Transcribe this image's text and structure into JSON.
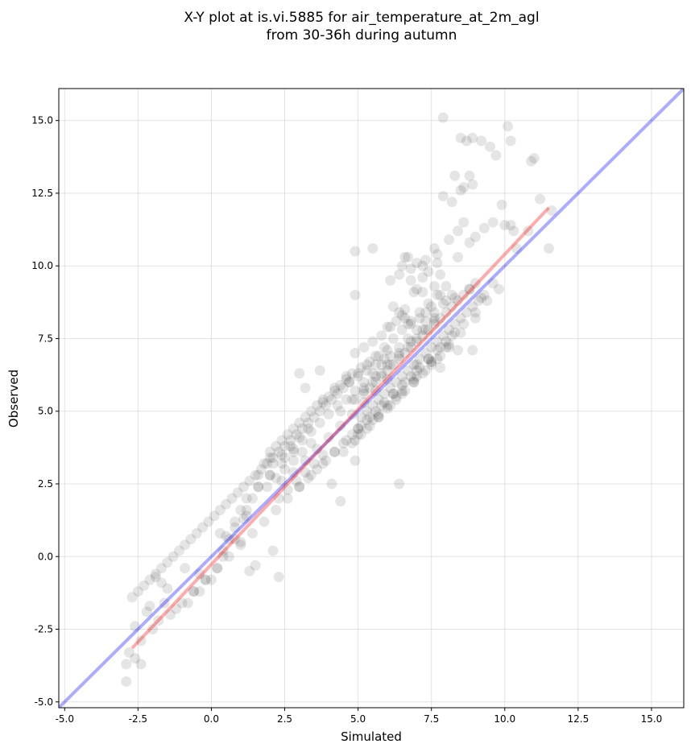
{
  "chart_data": {
    "type": "scatter",
    "title_lines": [
      "X-Y plot at is.vi.5885 for air_temperature_at_2m_agl",
      "from 30-36h during autumn"
    ],
    "xlabel": "Simulated",
    "ylabel": "Observed",
    "xlim": [
      -5.2,
      16.1
    ],
    "ylim": [
      -5.2,
      16.1
    ],
    "xticks": [
      -5.0,
      -2.5,
      0.0,
      2.5,
      5.0,
      7.5,
      10.0,
      12.5,
      15.0
    ],
    "yticks": [
      -5.0,
      -2.5,
      0.0,
      2.5,
      5.0,
      7.5,
      10.0,
      12.5,
      15.0
    ],
    "xtick_labels": [
      "-5.0",
      "-2.5",
      "0.0",
      "2.5",
      "5.0",
      "7.5",
      "10.0",
      "12.5",
      "15.0"
    ],
    "ytick_labels": [
      "-5.0",
      "-2.5",
      "0.0",
      "2.5",
      "5.0",
      "7.5",
      "10.0",
      "12.5",
      "15.0"
    ],
    "grid": true,
    "point_color": "#000000",
    "point_alpha": 0.1,
    "lines": [
      {
        "label": "",
        "color": "#0000ff",
        "alpha": 0.33,
        "x": [
          -5.2,
          16.1
        ],
        "y": [
          -5.2,
          16.1
        ]
      },
      {
        "label": "",
        "color": "#ff0000",
        "alpha": 0.33,
        "x": [
          -2.7,
          11.5
        ],
        "y": [
          -3.15,
          12.0
        ]
      }
    ],
    "points": {
      "x": [
        7.9,
        10.1,
        8.9,
        9.2,
        8.5,
        8.7,
        9.5,
        9.7,
        10.2,
        11.0,
        10.9,
        8.3,
        8.8,
        8.9,
        8.6,
        7.9,
        8.2,
        8.5,
        9.9,
        11.2,
        11.6,
        10.8,
        10.4,
        11.5,
        9.3,
        9.6,
        10.0,
        10.2,
        10.3,
        9.0,
        8.6,
        8.4,
        8.1,
        8.8,
        7.7,
        7.6,
        7.3,
        7.0,
        6.8,
        6.6,
        6.4,
        6.8,
        7.4,
        7.2,
        7.0,
        6.9,
        7.6,
        7.8,
        8.0,
        8.3,
        7.5,
        7.3,
        7.1,
        6.7,
        6.5,
        6.3,
        6.1,
        5.8,
        5.5,
        5.2,
        4.9,
        6.0,
        5.7,
        5.4,
        5.1,
        4.8,
        4.6,
        4.4,
        4.2,
        4.0,
        3.8,
        6.2,
        6.4,
        6.6,
        6.8,
        5.9,
        5.6,
        5.3,
        5.0,
        4.7,
        4.5,
        4.3,
        4.1,
        3.9,
        3.7,
        3.5,
        3.3,
        3.1,
        2.9,
        2.7,
        2.5,
        2.3,
        2.1,
        1.9,
        1.7,
        1.5,
        1.3,
        1.1,
        0.9,
        0.7,
        0.5,
        0.3,
        0.1,
        -0.1,
        -0.3,
        -0.5,
        -0.7,
        -0.9,
        -1.1,
        -1.3,
        -1.5,
        -1.7,
        -1.9,
        -2.1,
        -2.3,
        -2.5,
        -2.7,
        -2.2,
        -1.8,
        -1.6,
        -2.0,
        -2.4,
        -2.6,
        -1.4,
        -1.0,
        -0.6,
        -0.2,
        0.2,
        0.6,
        1.0,
        1.4,
        1.8,
        2.2,
        2.6,
        3.0,
        3.4,
        3.8,
        4.2,
        4.6,
        5.0,
        5.4,
        5.8,
        6.2,
        6.6,
        7.0,
        7.4,
        7.8,
        8.2,
        8.6,
        9.0,
        9.4,
        9.8,
        2.4,
        2.8,
        3.2,
        3.6,
        4.0,
        4.4,
        4.8,
        5.2,
        5.6,
        6.0,
        2.0,
        2.2,
        2.6,
        3.0,
        3.4,
        3.8,
        4.2,
        4.6,
        1.6,
        1.8,
        2.0,
        2.4,
        2.8,
        3.2,
        3.6,
        1.2,
        1.4,
        1.6,
        2.0,
        2.4,
        2.8,
        0.8,
        1.0,
        1.2,
        1.6,
        2.0,
        0.4,
        0.6,
        0.8,
        1.2,
        0.0,
        0.2,
        0.4,
        -0.4,
        -0.2,
        -0.8,
        -0.6,
        -1.2,
        5.1,
        5.3,
        5.5,
        5.7,
        5.9,
        6.1,
        6.3,
        6.5,
        6.7,
        6.9,
        7.1,
        7.3,
        7.5,
        7.7,
        7.9,
        8.1,
        8.3,
        8.5,
        8.7,
        8.9,
        9.1,
        9.3,
        5.2,
        5.4,
        5.6,
        5.8,
        6.0,
        6.2,
        6.4,
        6.6,
        6.8,
        7.0,
        7.2,
        7.4,
        7.6,
        7.8,
        8.0,
        8.2,
        8.4,
        8.6,
        8.8,
        9.0,
        5.0,
        5.3,
        5.6,
        5.9,
        6.2,
        6.5,
        6.8,
        7.1,
        7.4,
        7.7,
        8.0,
        8.3,
        4.9,
        5.2,
        5.5,
        5.8,
        6.1,
        6.4,
        6.7,
        7.0,
        7.3,
        7.6,
        4.8,
        5.1,
        5.4,
        5.7,
        6.0,
        6.3,
        6.6,
        6.9,
        7.2,
        7.5,
        7.8,
        4.7,
        5.0,
        5.3,
        5.6,
        5.9,
        6.2,
        6.5,
        6.8,
        7.1,
        7.4,
        7.7,
        8.0,
        4.5,
        4.9,
        5.3,
        5.7,
        6.1,
        6.5,
        6.9,
        7.3,
        7.7,
        8.1,
        4.4,
        4.8,
        5.2,
        5.6,
        6.0,
        6.4,
        6.8,
        7.2,
        7.6,
        3.0,
        3.3,
        3.6,
        3.9,
        4.2,
        4.5,
        4.8,
        5.1,
        2.5,
        2.8,
        3.1,
        3.4,
        3.7,
        4.0,
        4.3,
        2.3,
        2.6,
        2.9,
        3.2,
        3.5,
        3.8,
        2.1,
        2.4,
        2.7,
        3.0,
        3.3,
        1.9,
        2.2,
        2.5,
        2.8,
        3.1,
        3.4,
        4.6,
        4.9,
        5.2,
        5.5,
        5.8,
        6.1,
        6.4,
        6.7,
        7.0,
        7.3,
        7.6,
        7.9,
        8.2,
        5.0,
        5.5,
        6.0,
        6.5,
        7.0,
        7.5,
        8.0,
        8.5,
        9.0,
        5.7,
        6.3,
        6.9,
        7.5,
        8.1,
        6.0,
        6.6,
        7.2,
        7.8,
        8.4,
        9.2,
        9.6,
        8.8,
        8.4,
        7.8,
        4.9,
        4.9,
        5.5,
        3.7,
        3.0,
        3.2,
        4.1,
        4.4,
        4.9,
        6.4,
        6.5,
        6.1,
        6.7,
        7.0,
        7.2,
        7.7,
        8.9,
        2.3,
        2.1,
        1.5,
        1.0,
        0.5,
        0.3,
        0.8,
        1.1,
        1.3,
        -0.4,
        -0.9,
        -1.5,
        -1.7,
        -1.9,
        -2.1,
        -2.6,
        -2.8,
        -2.4,
        -2.9,
        -2.9
      ],
      "y": [
        15.1,
        14.8,
        14.4,
        14.3,
        14.4,
        14.3,
        14.1,
        13.8,
        14.3,
        13.7,
        13.6,
        13.1,
        13.1,
        12.8,
        12.7,
        12.4,
        12.2,
        12.6,
        12.1,
        12.3,
        11.9,
        11.2,
        10.6,
        10.6,
        11.3,
        11.5,
        11.4,
        11.4,
        11.2,
        11.0,
        11.5,
        11.2,
        10.9,
        10.8,
        10.4,
        10.6,
        10.2,
        10.1,
        9.9,
        10.3,
        9.7,
        9.5,
        9.8,
        9.6,
        9.2,
        9.1,
        9.3,
        9.0,
        8.8,
        8.9,
        8.6,
        8.4,
        8.2,
        8.0,
        8.3,
        8.1,
        7.9,
        7.6,
        7.4,
        7.2,
        7.0,
        7.1,
        6.9,
        6.7,
        6.5,
        6.3,
        6.1,
        5.9,
        5.7,
        5.5,
        5.3,
        8.6,
        8.4,
        8.2,
        8.0,
        6.8,
        6.6,
        6.4,
        6.2,
        6.0,
        5.8,
        5.6,
        5.4,
        5.2,
        5.0,
        4.8,
        4.6,
        4.4,
        4.2,
        4.0,
        3.8,
        3.6,
        3.4,
        3.2,
        3.0,
        2.8,
        2.6,
        2.4,
        2.2,
        2.0,
        1.8,
        1.6,
        1.4,
        1.2,
        1.0,
        0.8,
        0.6,
        0.4,
        0.2,
        0.0,
        -0.2,
        -0.4,
        -0.6,
        -0.8,
        -1.0,
        -1.2,
        -1.4,
        -1.9,
        -2.2,
        -1.6,
        -2.5,
        -2.9,
        -3.5,
        -2.0,
        -1.6,
        -1.2,
        -0.8,
        -0.4,
        0.0,
        0.4,
        0.8,
        1.2,
        1.6,
        2.0,
        2.4,
        2.8,
        3.2,
        3.6,
        4.0,
        4.4,
        4.8,
        5.2,
        5.6,
        6.0,
        6.4,
        6.8,
        7.2,
        7.6,
        8.0,
        8.4,
        8.8,
        9.2,
        2.6,
        2.9,
        3.3,
        3.7,
        4.1,
        4.5,
        4.9,
        5.3,
        5.7,
        6.1,
        3.4,
        3.8,
        4.2,
        4.6,
        5.0,
        5.4,
        5.8,
        6.2,
        2.8,
        3.2,
        3.6,
        4.0,
        4.4,
        4.8,
        5.2,
        1.6,
        2.0,
        2.4,
        2.8,
        3.2,
        3.6,
        1.2,
        1.6,
        2.0,
        2.4,
        2.8,
        0.2,
        0.6,
        1.0,
        1.4,
        -0.8,
        -0.4,
        0.0,
        -1.2,
        -0.8,
        -1.6,
        -1.2,
        -1.8,
        4.8,
        5.0,
        5.2,
        5.4,
        5.6,
        5.8,
        6.0,
        6.2,
        6.4,
        6.6,
        6.8,
        7.0,
        7.2,
        7.4,
        7.6,
        7.8,
        8.0,
        8.2,
        8.4,
        8.6,
        8.8,
        9.0,
        5.6,
        5.8,
        6.0,
        6.2,
        6.4,
        6.6,
        6.8,
        7.0,
        7.2,
        7.4,
        7.6,
        7.8,
        8.0,
        8.2,
        8.4,
        8.6,
        8.8,
        9.0,
        9.2,
        9.4,
        4.4,
        4.7,
        5.0,
        5.3,
        5.6,
        5.9,
        6.2,
        6.5,
        6.8,
        7.1,
        7.4,
        7.7,
        5.4,
        5.7,
        6.0,
        6.3,
        6.6,
        6.9,
        7.2,
        7.5,
        7.8,
        8.1,
        3.9,
        4.2,
        4.5,
        4.8,
        5.1,
        5.4,
        5.7,
        6.0,
        6.3,
        6.6,
        6.9,
        6.0,
        6.3,
        6.6,
        6.9,
        7.2,
        7.5,
        7.8,
        8.1,
        8.4,
        8.7,
        9.0,
        9.3,
        3.6,
        4.0,
        4.4,
        4.8,
        5.2,
        5.6,
        6.0,
        6.4,
        6.8,
        7.2,
        5.0,
        5.4,
        5.8,
        6.2,
        6.6,
        7.0,
        7.4,
        7.8,
        8.2,
        2.4,
        2.7,
        3.0,
        3.3,
        3.6,
        3.9,
        4.2,
        4.5,
        3.4,
        3.7,
        4.0,
        4.3,
        4.6,
        4.9,
        5.2,
        2.0,
        2.3,
        2.6,
        2.9,
        3.2,
        3.5,
        3.2,
        3.5,
        3.8,
        4.1,
        4.4,
        2.4,
        2.7,
        3.0,
        3.3,
        3.6,
        3.9,
        5.4,
        5.7,
        6.0,
        6.3,
        6.6,
        6.9,
        7.2,
        7.5,
        7.8,
        8.1,
        8.4,
        8.7,
        9.0,
        4.2,
        4.7,
        5.2,
        5.7,
        6.2,
        6.7,
        7.2,
        7.7,
        8.2,
        4.9,
        5.5,
        6.1,
        6.7,
        7.3,
        7.9,
        8.5,
        9.1,
        9.7,
        10.3,
        8.9,
        9.4,
        9.2,
        7.1,
        6.5,
        10.5,
        9.0,
        10.6,
        6.4,
        6.3,
        5.8,
        2.5,
        1.9,
        3.3,
        2.5,
        10.0,
        9.5,
        10.3,
        6.6,
        10.0,
        10.1,
        7.1,
        -0.7,
        0.2,
        -0.3,
        0.5,
        0.7,
        0.8,
        0.6,
        1.3,
        -0.5,
        -0.6,
        -0.4,
        -1.1,
        -0.9,
        -0.7,
        -1.7,
        -2.4,
        -3.3,
        -3.7,
        -3.7,
        -4.3
      ]
    }
  }
}
